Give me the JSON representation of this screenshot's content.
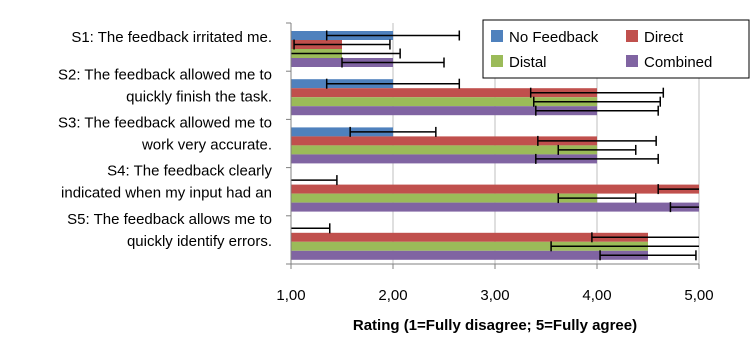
{
  "chart_data": {
    "type": "bar",
    "orientation": "horizontal",
    "title": "",
    "xlabel": "Rating (1=Fully disagree; 5=Fully agree)",
    "ylabel": "",
    "xlim": [
      1,
      5
    ],
    "x_ticks": [
      "1,00",
      "2,00",
      "3,00",
      "4,00",
      "5,00"
    ],
    "grid": "vertical major gridlines",
    "legend_position": "top-right",
    "categories": [
      {
        "lines": [
          "S1: The feedback irritated me."
        ]
      },
      {
        "lines": [
          "S2: The feedback allowed me to",
          "quickly finish the task."
        ]
      },
      {
        "lines": [
          "S3: The feedback allowed me to",
          "work very accurate."
        ]
      },
      {
        "lines": [
          "S4: The feedback clearly",
          "indicated when my input had an"
        ]
      },
      {
        "lines": [
          "S5: The feedback allows me to",
          "quickly identify errors."
        ]
      }
    ],
    "series": [
      {
        "name": "No Feedback",
        "color": "#4f81bd",
        "values": [
          2.0,
          2.0,
          2.0,
          1.0,
          1.0
        ],
        "error": [
          0.65,
          0.65,
          0.42,
          0.45,
          0.38
        ]
      },
      {
        "name": "Direct",
        "color": "#c0504d",
        "values": [
          1.5,
          4.0,
          4.0,
          5.0,
          4.5
        ],
        "error": [
          0.47,
          0.65,
          0.58,
          0.4,
          0.55
        ]
      },
      {
        "name": "Distal",
        "color": "#9bbb59",
        "values": [
          1.5,
          4.0,
          4.0,
          4.0,
          4.5
        ],
        "error": [
          0.57,
          0.62,
          0.38,
          0.38,
          0.95
        ]
      },
      {
        "name": "Combined",
        "color": "#8064a2",
        "values": [
          2.0,
          4.0,
          4.0,
          5.0,
          4.5
        ],
        "error": [
          0.5,
          0.6,
          0.6,
          0.28,
          0.47
        ]
      }
    ]
  }
}
